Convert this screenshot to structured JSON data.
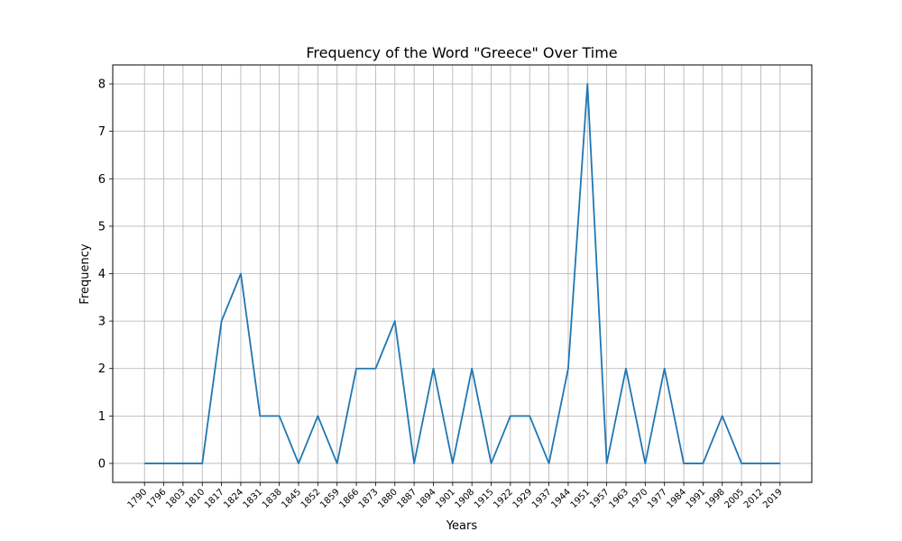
{
  "chart_data": {
    "type": "line",
    "title": "Frequency of the Word \"Greece\" Over Time",
    "xlabel": "Years",
    "ylabel": "Frequency",
    "x": [
      "1790",
      "1796",
      "1803",
      "1810",
      "1817",
      "1824",
      "1831",
      "1838",
      "1845",
      "1852",
      "1859",
      "1866",
      "1873",
      "1880",
      "1887",
      "1894",
      "1901",
      "1908",
      "1915",
      "1922",
      "1929",
      "1937",
      "1944",
      "1951",
      "1957",
      "1963",
      "1970",
      "1977",
      "1984",
      "1991",
      "1998",
      "2005",
      "2012",
      "2019"
    ],
    "series": [
      {
        "values": [
          0,
          0,
          0,
          0,
          3,
          4,
          1,
          1,
          0,
          1,
          0,
          2,
          2,
          3,
          0,
          2,
          0,
          2,
          0,
          1,
          1,
          0,
          2,
          8,
          0,
          2,
          0,
          2,
          0,
          0,
          1,
          0,
          0,
          0
        ]
      }
    ],
    "ylim": [
      -0.4,
      8.4
    ],
    "yticks": [
      0,
      1,
      2,
      3,
      4,
      5,
      6,
      7,
      8
    ],
    "grid": true,
    "colors": {
      "line": "#1f77b4",
      "grid": "#b0b0b0"
    }
  }
}
